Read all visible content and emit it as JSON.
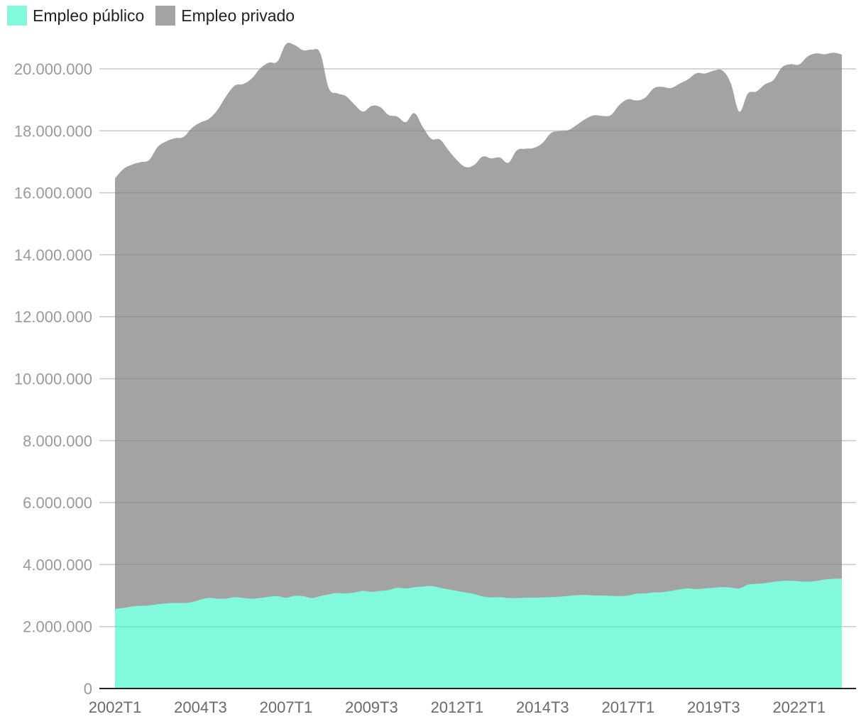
{
  "colors": {
    "public": "#82f8dc",
    "private": "#a3a3a3",
    "grid": "#dedede",
    "axis": "#222222"
  },
  "legend": [
    {
      "key": "public",
      "label": "Empleo público"
    },
    {
      "key": "private",
      "label": "Empleo privado"
    }
  ],
  "chart_data": {
    "type": "area",
    "stacked": true,
    "title": "",
    "xlabel": "",
    "ylabel": "",
    "ylim": [
      0,
      21000000
    ],
    "yticks": [
      0,
      2000000,
      4000000,
      6000000,
      8000000,
      10000000,
      12000000,
      14000000,
      16000000,
      18000000,
      20000000
    ],
    "ytick_labels": [
      "0",
      "2.000.000",
      "4.000.000",
      "6.000.000",
      "8.000.000",
      "10.000.000",
      "12.000.000",
      "14.000.000",
      "16.000.000",
      "18.000.000",
      "20.000.000"
    ],
    "xtick_labels": [
      "2002T1",
      "2004T3",
      "2007T1",
      "2009T3",
      "2012T1",
      "2014T3",
      "2017T1",
      "2019T3",
      "2022T1"
    ],
    "grid": true,
    "legend_position": "top-left",
    "x": [
      "2002T1",
      "2002T2",
      "2002T3",
      "2002T4",
      "2003T1",
      "2003T2",
      "2003T3",
      "2003T4",
      "2004T1",
      "2004T2",
      "2004T3",
      "2004T4",
      "2005T1",
      "2005T2",
      "2005T3",
      "2005T4",
      "2006T1",
      "2006T2",
      "2006T3",
      "2006T4",
      "2007T1",
      "2007T2",
      "2007T3",
      "2007T4",
      "2008T1",
      "2008T2",
      "2008T3",
      "2008T4",
      "2009T1",
      "2009T2",
      "2009T3",
      "2009T4",
      "2010T1",
      "2010T2",
      "2010T3",
      "2010T4",
      "2011T1",
      "2011T2",
      "2011T3",
      "2011T4",
      "2012T1",
      "2012T2",
      "2012T3",
      "2012T4",
      "2013T1",
      "2013T2",
      "2013T3",
      "2013T4",
      "2014T1",
      "2014T2",
      "2014T3",
      "2014T4",
      "2015T1",
      "2015T2",
      "2015T3",
      "2015T4",
      "2016T1",
      "2016T2",
      "2016T3",
      "2016T4",
      "2017T1",
      "2017T2",
      "2017T3",
      "2017T4",
      "2018T1",
      "2018T2",
      "2018T3",
      "2018T4",
      "2019T1",
      "2019T2",
      "2019T3",
      "2019T4",
      "2020T1",
      "2020T2",
      "2020T3",
      "2020T4",
      "2021T1",
      "2021T2",
      "2021T3",
      "2021T4",
      "2022T1",
      "2022T2",
      "2022T3",
      "2022T4",
      "2023T1",
      "2023T2"
    ],
    "series": [
      {
        "name": "Empleo público",
        "values": [
          2570000,
          2600000,
          2650000,
          2670000,
          2680000,
          2720000,
          2750000,
          2760000,
          2760000,
          2790000,
          2870000,
          2920000,
          2900000,
          2900000,
          2950000,
          2920000,
          2900000,
          2920000,
          2960000,
          2980000,
          2930000,
          2990000,
          2980000,
          2920000,
          2980000,
          3040000,
          3080000,
          3070000,
          3100000,
          3150000,
          3120000,
          3150000,
          3180000,
          3250000,
          3230000,
          3270000,
          3290000,
          3310000,
          3250000,
          3200000,
          3150000,
          3100000,
          3050000,
          2970000,
          2940000,
          2950000,
          2920000,
          2920000,
          2930000,
          2930000,
          2940000,
          2950000,
          2960000,
          2990000,
          3010000,
          3020000,
          3000000,
          3000000,
          2990000,
          2980000,
          3000000,
          3060000,
          3070000,
          3100000,
          3110000,
          3150000,
          3200000,
          3230000,
          3210000,
          3230000,
          3250000,
          3270000,
          3260000,
          3230000,
          3350000,
          3380000,
          3400000,
          3440000,
          3470000,
          3480000,
          3460000,
          3450000,
          3470000,
          3520000,
          3540000,
          3550000
        ]
      },
      {
        "name": "Empleo privado",
        "values": [
          13900000,
          14170000,
          14260000,
          14320000,
          14380000,
          14760000,
          14910000,
          15000000,
          15040000,
          15300000,
          15400000,
          15470000,
          15780000,
          16220000,
          16510000,
          16590000,
          16790000,
          17100000,
          17240000,
          17260000,
          17870000,
          17780000,
          17620000,
          17700000,
          17530000,
          16340000,
          16130000,
          16050000,
          15750000,
          15470000,
          15680000,
          15620000,
          15330000,
          15210000,
          15050000,
          15300000,
          14830000,
          14430000,
          14470000,
          14170000,
          13900000,
          13730000,
          13850000,
          14200000,
          14170000,
          14190000,
          14050000,
          14450000,
          14490000,
          14520000,
          14670000,
          14980000,
          15030000,
          15030000,
          15180000,
          15360000,
          15500000,
          15480000,
          15520000,
          15860000,
          16020000,
          15920000,
          16000000,
          16270000,
          16310000,
          16230000,
          16320000,
          16430000,
          16650000,
          16620000,
          16690000,
          16680000,
          16280000,
          15390000,
          15850000,
          15890000,
          16100000,
          16200000,
          16580000,
          16670000,
          16680000,
          16950000,
          17030000,
          16950000,
          16980000,
          16910000
        ]
      }
    ]
  }
}
